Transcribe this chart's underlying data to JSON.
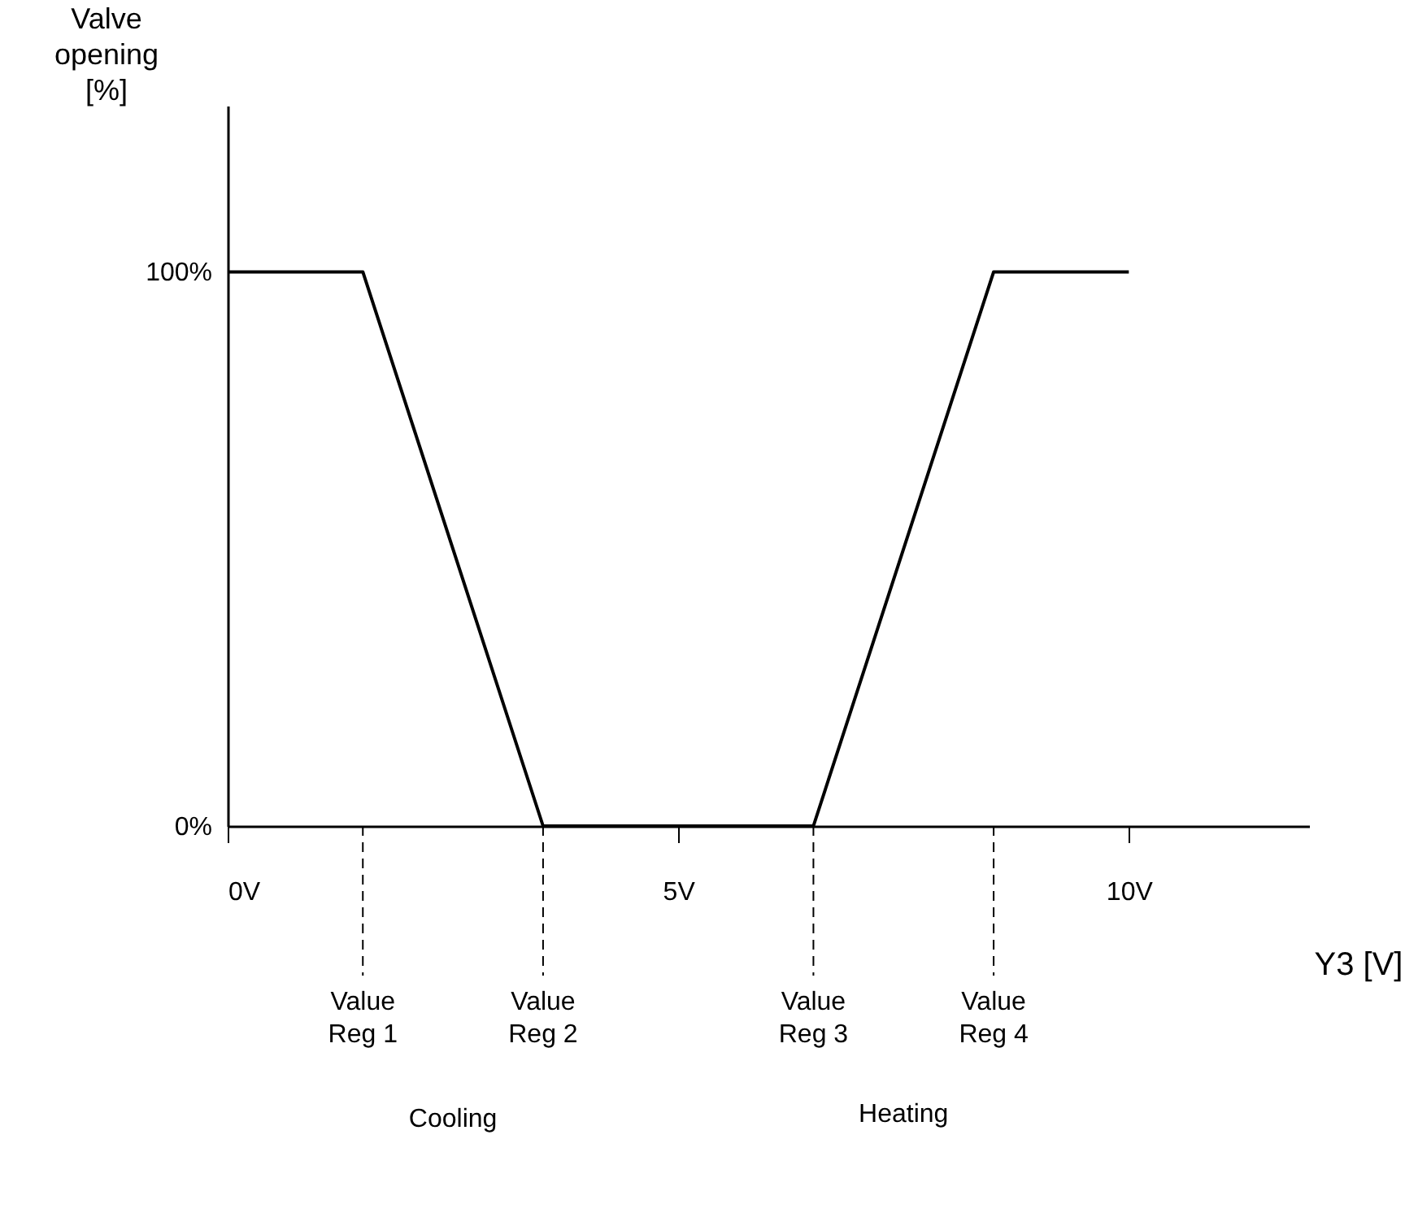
{
  "chart_data": {
    "type": "line",
    "xlabel": "Y3 [V]",
    "ylabel": "Valve opening [%]",
    "x": [
      0,
      1.5,
      3.5,
      6.5,
      8.5,
      10
    ],
    "series": [
      {
        "color": "#000000",
        "values": [
          100,
          100,
          0,
          0,
          100,
          100
        ]
      }
    ],
    "xlim": [
      0,
      12
    ],
    "xticks": [
      {
        "value": 0,
        "label": "0V"
      },
      {
        "value": 5,
        "label": "5V"
      },
      {
        "value": 10,
        "label": "10V"
      }
    ],
    "ylim": [
      0,
      130
    ],
    "yticks": [
      {
        "value": 0,
        "label": "0%"
      },
      {
        "value": 100,
        "label": "100%"
      }
    ],
    "ref_lines": [
      {
        "axis": "x",
        "value": 1.5,
        "label": "Value Reg 1",
        "line_style": "dashed",
        "color": "#000000"
      },
      {
        "axis": "x",
        "value": 3.5,
        "label": "Value Reg 2",
        "line_style": "dashed",
        "color": "#000000"
      },
      {
        "axis": "x",
        "value": 6.5,
        "label": "Value Reg 3",
        "line_style": "dashed",
        "color": "#000000"
      },
      {
        "axis": "x",
        "value": 8.5,
        "label": "Value Reg 4",
        "line_style": "dashed",
        "color": "#000000"
      }
    ],
    "annotations": [
      "Cooling",
      "Heating"
    ],
    "grid": false,
    "marker": "none",
    "line_style": "solid"
  }
}
